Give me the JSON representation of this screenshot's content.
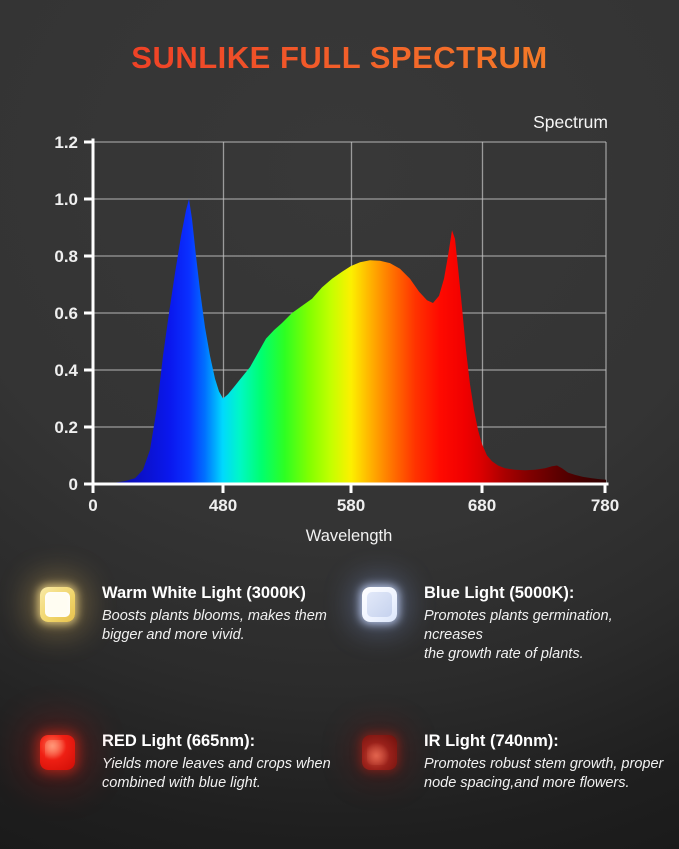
{
  "header": {
    "title": "SUNLIKE FULL SPECTRUM",
    "title_gradient": [
      "#ee3322",
      "#f58a26"
    ]
  },
  "chart_data": {
    "type": "area",
    "legend_label": "Spectrum",
    "xlabel": "Wavelength",
    "x_unit": "nm",
    "x_tick_labels": [
      "0",
      "480",
      "580",
      "680",
      "780"
    ],
    "y_tick_labels": [
      "1.2",
      "1.0",
      "0.8",
      "0.6",
      "0.4",
      "0.2",
      "0"
    ],
    "ylim": [
      0,
      1.2
    ],
    "axis_note": "x axis non-linear: first division spans 0-480nm, then 100nm per division",
    "key_features": {
      "blue_peak": {
        "wavelength_nm": 450,
        "intensity": 1.0
      },
      "cyan_dip": {
        "wavelength_nm": 480,
        "intensity": 0.3
      },
      "broad_peak": {
        "wavelength_nm": 600,
        "intensity": 0.78
      },
      "red_valley": {
        "wavelength_nm": 640,
        "intensity": 0.63
      },
      "red_peak": {
        "wavelength_nm": 660,
        "intensity": 0.89
      },
      "ir_bump": {
        "wavelength_nm": 740,
        "intensity": 0.06
      }
    },
    "points": [
      [
        0,
        0
      ],
      [
        22,
        0.005
      ],
      [
        32,
        0.01
      ],
      [
        42,
        0.02
      ],
      [
        50,
        0.05
      ],
      [
        57,
        0.12
      ],
      [
        64,
        0.27
      ],
      [
        70,
        0.45
      ],
      [
        76,
        0.6
      ],
      [
        82,
        0.74
      ],
      [
        88,
        0.87
      ],
      [
        93,
        0.96
      ],
      [
        96,
        1.0
      ],
      [
        99,
        0.93
      ],
      [
        103,
        0.8
      ],
      [
        107,
        0.68
      ],
      [
        112,
        0.55
      ],
      [
        117,
        0.45
      ],
      [
        122,
        0.37
      ],
      [
        126,
        0.325
      ],
      [
        130,
        0.3
      ],
      [
        135,
        0.315
      ],
      [
        142,
        0.345
      ],
      [
        150,
        0.38
      ],
      [
        157,
        0.41
      ],
      [
        165,
        0.46
      ],
      [
        173,
        0.51
      ],
      [
        181,
        0.54
      ],
      [
        189,
        0.565
      ],
      [
        199,
        0.6
      ],
      [
        209,
        0.625
      ],
      [
        219,
        0.65
      ],
      [
        229,
        0.69
      ],
      [
        239,
        0.72
      ],
      [
        249,
        0.745
      ],
      [
        258,
        0.765
      ],
      [
        267,
        0.778
      ],
      [
        277,
        0.785
      ],
      [
        287,
        0.783
      ],
      [
        297,
        0.775
      ],
      [
        307,
        0.755
      ],
      [
        317,
        0.72
      ],
      [
        326,
        0.675
      ],
      [
        334,
        0.645
      ],
      [
        340,
        0.635
      ],
      [
        346,
        0.66
      ],
      [
        351,
        0.72
      ],
      [
        355,
        0.8
      ],
      [
        359,
        0.89
      ],
      [
        362,
        0.86
      ],
      [
        365,
        0.76
      ],
      [
        369,
        0.62
      ],
      [
        373,
        0.47
      ],
      [
        377,
        0.35
      ],
      [
        381,
        0.26
      ],
      [
        385,
        0.19
      ],
      [
        389,
        0.14
      ],
      [
        394,
        0.1
      ],
      [
        399,
        0.08
      ],
      [
        405,
        0.065
      ],
      [
        412,
        0.055
      ],
      [
        422,
        0.05
      ],
      [
        432,
        0.048
      ],
      [
        442,
        0.05
      ],
      [
        452,
        0.055
      ],
      [
        459,
        0.062
      ],
      [
        464,
        0.065
      ],
      [
        469,
        0.055
      ],
      [
        475,
        0.04
      ],
      [
        482,
        0.032
      ],
      [
        490,
        0.025
      ],
      [
        499,
        0.02
      ],
      [
        507,
        0.017
      ],
      [
        513,
        0.015
      ]
    ]
  },
  "legend": {
    "items": [
      {
        "icon": "warm-white-led",
        "color": "#fff3c8",
        "title": "Warm White Light (3000K)",
        "desc_lines": [
          "Boosts plants blooms, makes them",
          "bigger and more vivid."
        ]
      },
      {
        "icon": "blue-led",
        "color": "#dfe8fb",
        "title": "Blue Light (5000K):",
        "desc_lines": [
          "Promotes plants germination, ncreases",
          "the growth rate of plants."
        ]
      },
      {
        "icon": "red-led",
        "color": "#e8180e",
        "title": "RED Light (665nm):",
        "desc_lines": [
          "Yields more leaves and crops when",
          "combined with blue light."
        ]
      },
      {
        "icon": "ir-led",
        "color": "#8a1510",
        "title": "IR Light (740nm):",
        "desc_lines": [
          "Promotes robust stem growth, proper",
          "node spacing,and more flowers."
        ]
      }
    ]
  }
}
